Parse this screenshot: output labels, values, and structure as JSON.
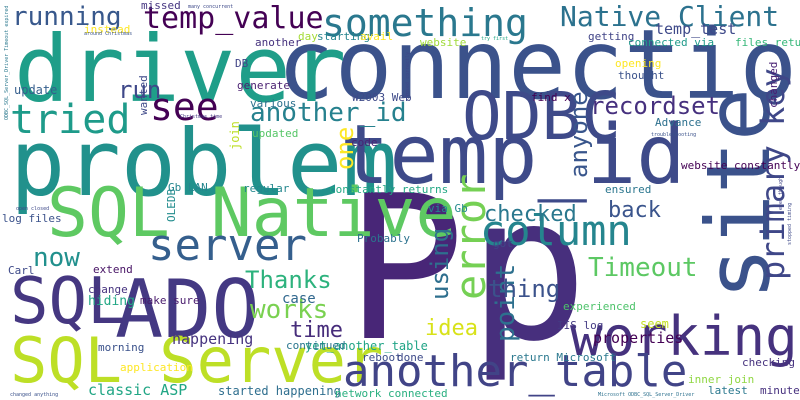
{
  "word_cloud": {
    "words": [
      {
        "text": "connection",
        "color": "#3b528b"
      },
      {
        "text": "problem",
        "color": "#21918c"
      },
      {
        "text": "driver",
        "color": "#1f9e89"
      },
      {
        "text": "temp_id",
        "color": "#3e4a89"
      },
      {
        "text": "site",
        "color": "#3b528b"
      },
      {
        "text": "P",
        "color": "#482677"
      },
      {
        "text": "p",
        "color": "#472f7d"
      },
      {
        "text": "SQL Native",
        "color": "#5ec962"
      },
      {
        "text": "ADO",
        "color": "#443983"
      },
      {
        "text": "SQL",
        "color": "#453781"
      },
      {
        "text": "SQL Server",
        "color": "#bddf26"
      },
      {
        "text": "ODBC",
        "color": "#3e4a89"
      },
      {
        "text": "working",
        "color": "#46327e"
      },
      {
        "text": "another_table",
        "color": "#414487"
      },
      {
        "text": "something",
        "color": "#2a788e"
      },
      {
        "text": "temp_value",
        "color": "#440154"
      },
      {
        "text": "server",
        "color": "#355f8d"
      },
      {
        "text": "tried",
        "color": "#1e9b8a"
      },
      {
        "text": "see",
        "color": "#440154"
      },
      {
        "text": "column",
        "color": "#25858e"
      },
      {
        "text": "error",
        "color": "#75d054"
      },
      {
        "text": "primary key",
        "color": "#3f4788"
      },
      {
        "text": "Native Client",
        "color": "#2c728e"
      },
      {
        "text": "recordset",
        "color": "#46307e"
      },
      {
        "text": "another_id",
        "color": "#26818e"
      },
      {
        "text": "running",
        "color": "#38588c"
      },
      {
        "text": "run",
        "color": "#3f4889"
      },
      {
        "text": "using",
        "color": "#2e6f8e"
      },
      {
        "text": "point",
        "color": "#2d708e"
      },
      {
        "text": "anyone",
        "color": "#39568c"
      },
      {
        "text": "Timeout",
        "color": "#5cc863"
      },
      {
        "text": "checked",
        "color": "#2a788e"
      },
      {
        "text": "back",
        "color": "#3a548c"
      },
      {
        "text": "works",
        "color": "#7ad151"
      },
      {
        "text": "Thanks",
        "color": "#2db27d"
      },
      {
        "text": "now",
        "color": "#21908d"
      },
      {
        "text": "time",
        "color": "#472d7b"
      },
      {
        "text": "thing",
        "color": "#3b528b"
      },
      {
        "text": "idea",
        "color": "#d8e219"
      },
      {
        "text": "one",
        "color": "#fde725"
      },
      {
        "text": "classic ASP",
        "color": "#21a685"
      },
      {
        "text": "temp_test",
        "color": "#3e4989"
      },
      {
        "text": "properties",
        "color": "#440154"
      },
      {
        "text": "happening",
        "color": "#46337f"
      },
      {
        "text": "case",
        "color": "#31688e"
      },
      {
        "text": "yet_another_table",
        "color": "#20a486"
      },
      {
        "text": "started happening",
        "color": "#2e6e8e"
      },
      {
        "text": "hiding",
        "color": "#22a785"
      },
      {
        "text": "make sure",
        "color": "#481a6c"
      },
      {
        "text": "IIS log",
        "color": "#443a83"
      },
      {
        "text": "inner join",
        "color": "#90d743"
      },
      {
        "text": "experienced",
        "color": "#4ec36b"
      },
      {
        "text": "seem",
        "color": "#c2df23"
      },
      {
        "text": "checking",
        "color": "#46327e"
      },
      {
        "text": "changed",
        "color": "#482173"
      },
      {
        "text": "Probably",
        "color": "#2c728e"
      },
      {
        "text": "continued",
        "color": "#2a768e"
      },
      {
        "text": "reboot",
        "color": "#3d4e8a"
      },
      {
        "text": "done",
        "color": "#3e4a89"
      },
      {
        "text": "return Microsoft",
        "color": "#2a788e"
      },
      {
        "text": "via Gb",
        "color": "#23898e"
      },
      {
        "text": "constantly returns",
        "color": "#22a884"
      },
      {
        "text": "website constantly",
        "color": "#440154"
      },
      {
        "text": "ensured",
        "color": "#2a768e"
      },
      {
        "text": "OLEDB",
        "color": "#228c8d"
      },
      {
        "text": "Gb LAN",
        "color": "#24868e"
      },
      {
        "text": "update",
        "color": "#355f8d"
      },
      {
        "text": "instead",
        "color": "#fde725"
      },
      {
        "text": "wanted",
        "color": "#3e4989"
      },
      {
        "text": "various",
        "color": "#2d718e"
      },
      {
        "text": "updated",
        "color": "#56c667"
      },
      {
        "text": "join",
        "color": "#bddf26"
      },
      {
        "text": "code",
        "color": "#482475"
      },
      {
        "text": "regular",
        "color": "#24878e"
      },
      {
        "text": "log files",
        "color": "#3b528b"
      },
      {
        "text": "Carl",
        "color": "#3e4a89"
      },
      {
        "text": "extend",
        "color": "#471365"
      },
      {
        "text": "change",
        "color": "#46337f"
      },
      {
        "text": "morning",
        "color": "#3b528b"
      },
      {
        "text": "application",
        "color": "#fde725"
      },
      {
        "text": "network connected",
        "color": "#29af7f"
      },
      {
        "text": "latest",
        "color": "#2a788e"
      },
      {
        "text": "minutes",
        "color": "#46307e"
      },
      {
        "text": "got",
        "color": "#3f4788"
      },
      {
        "text": "generate",
        "color": "#481f70"
      },
      {
        "text": "W2003 Web",
        "color": "#3e4a89"
      },
      {
        "text": "DB",
        "color": "#414487"
      },
      {
        "text": "another",
        "color": "#46327e"
      },
      {
        "text": "day",
        "color": "#a5db36"
      },
      {
        "text": "starting",
        "color": "#25848e"
      },
      {
        "text": "missed",
        "color": "#453581"
      },
      {
        "text": "avail",
        "color": "#fde725"
      },
      {
        "text": "website",
        "color": "#a0da39"
      },
      {
        "text": "getting",
        "color": "#414487"
      },
      {
        "text": "opening",
        "color": "#fde725"
      },
      {
        "text": "thought",
        "color": "#3b528b"
      },
      {
        "text": "connected via",
        "color": "#1f9a8a"
      },
      {
        "text": "files return",
        "color": "#35b779"
      },
      {
        "text": "find x",
        "color": "#440154"
      },
      {
        "text": "Advance",
        "color": "#2d708e"
      },
      {
        "text": "Christmas time",
        "color": "#443983"
      },
      {
        "text": "around Christmas",
        "color": "#3a548c"
      },
      {
        "text": "many concurrent",
        "color": "#3e4a89"
      },
      {
        "text": "ODBC_SQL_Server_Driver Timeout expired",
        "color": "#2a788e"
      },
      {
        "text": "Microsoft ODBC_SQL_Server_Driver",
        "color": "#2d718e"
      },
      {
        "text": "closed correctly",
        "color": "#3f4788"
      },
      {
        "text": "open closed",
        "color": "#3e4989"
      },
      {
        "text": "try first",
        "color": "#22a884"
      },
      {
        "text": "stopped timing",
        "color": "#3e4a89"
      },
      {
        "text": "even though",
        "color": "#414487"
      },
      {
        "text": "changed anything",
        "color": "#3b528b"
      },
      {
        "text": "troubleshooting",
        "color": "#3b528b"
      }
    ]
  }
}
